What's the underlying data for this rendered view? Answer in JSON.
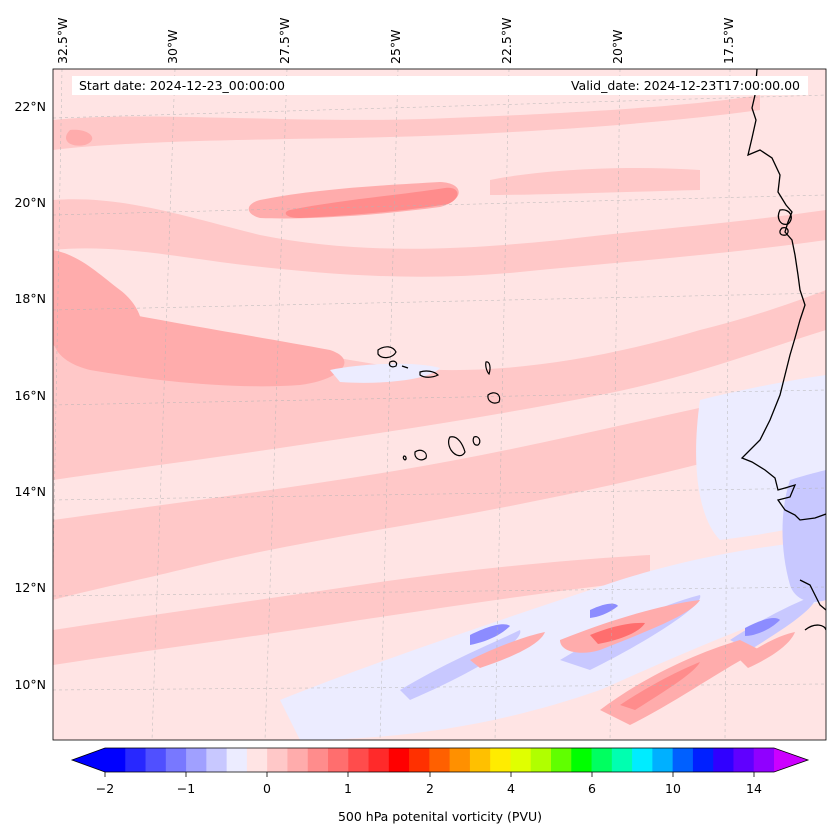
{
  "map": {
    "start_date": "Start date: 2024-12-23_00:00:00",
    "valid_date": "Valid_date: 2024-12-23T17:00:00.00",
    "lon_labels": [
      "32.5°W",
      "30°W",
      "27.5°W",
      "25°W",
      "22.5°W",
      "20°W",
      "17.5°W"
    ],
    "lat_labels": [
      "22°N",
      "20°N",
      "18°N",
      "16°N",
      "14°N",
      "12°N",
      "10°N"
    ],
    "gridlines": "dashed"
  },
  "colorbar": {
    "label": "500 hPa potenital vorticity (PVU)",
    "tick_labels": [
      "−2",
      "−1",
      "0",
      "1",
      "2",
      "4",
      "6",
      "10",
      "14"
    ],
    "extend": "both",
    "colors": [
      "#0000ff",
      "#2828ff",
      "#5050ff",
      "#7878ff",
      "#a0a0ff",
      "#c8c8ff",
      "#ececff",
      "#ffe4e4",
      "#ffc8c8",
      "#ffacac",
      "#ff8c8c",
      "#ff6e6e",
      "#ff4c4c",
      "#ff2a2a",
      "#ff0000",
      "#ff3000",
      "#ff6000",
      "#ff9000",
      "#ffc000",
      "#ffec00",
      "#e0ff00",
      "#b0ff00",
      "#60ff00",
      "#00ff00",
      "#00ff60",
      "#00ffb0",
      "#00ecff",
      "#00b0ff",
      "#0060ff",
      "#0020ff",
      "#3000ff",
      "#6000ff",
      "#9000ff"
    ],
    "under_color": "#0000ff",
    "over_color": "#cc00ff"
  },
  "colors": {
    "background_field": "#ffe4e4",
    "light_positive": "#ffc8c8",
    "medium_positive": "#ffacac",
    "strong_positive": "#ff8c8c",
    "very_strong_positive": "#ff5050",
    "light_negative": "#ececff",
    "medium_negative": "#c8c8ff",
    "strong_negative": "#8c8cff",
    "coastline": "#000000"
  }
}
